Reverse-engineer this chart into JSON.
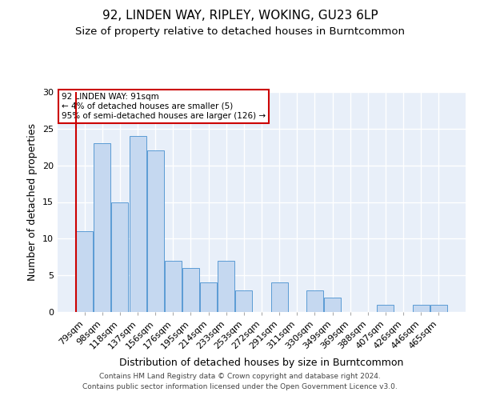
{
  "title": "92, LINDEN WAY, RIPLEY, WOKING, GU23 6LP",
  "subtitle": "Size of property relative to detached houses in Burntcommon",
  "xlabel": "Distribution of detached houses by size in Burntcommon",
  "ylabel": "Number of detached properties",
  "categories": [
    "79sqm",
    "98sqm",
    "118sqm",
    "137sqm",
    "156sqm",
    "176sqm",
    "195sqm",
    "214sqm",
    "233sqm",
    "253sqm",
    "272sqm",
    "291sqm",
    "311sqm",
    "330sqm",
    "349sqm",
    "369sqm",
    "388sqm",
    "407sqm",
    "426sqm",
    "446sqm",
    "465sqm"
  ],
  "values": [
    11,
    23,
    15,
    24,
    22,
    7,
    6,
    4,
    7,
    3,
    0,
    4,
    0,
    3,
    2,
    0,
    0,
    1,
    0,
    1,
    1
  ],
  "bar_color": "#c5d8f0",
  "bar_edge_color": "#5b9bd5",
  "highlight_line_color": "#cc0000",
  "annotation_text": "92 LINDEN WAY: 91sqm\n← 4% of detached houses are smaller (5)\n95% of semi-detached houses are larger (126) →",
  "annotation_box_edge_color": "#cc0000",
  "ylim": [
    0,
    30
  ],
  "yticks": [
    0,
    5,
    10,
    15,
    20,
    25,
    30
  ],
  "footer": "Contains HM Land Registry data © Crown copyright and database right 2024.\nContains public sector information licensed under the Open Government Licence v3.0.",
  "bg_color": "#e8eff9",
  "grid_color": "#ffffff",
  "title_fontsize": 11,
  "subtitle_fontsize": 9.5,
  "axis_label_fontsize": 9,
  "tick_fontsize": 8,
  "footer_fontsize": 6.5
}
